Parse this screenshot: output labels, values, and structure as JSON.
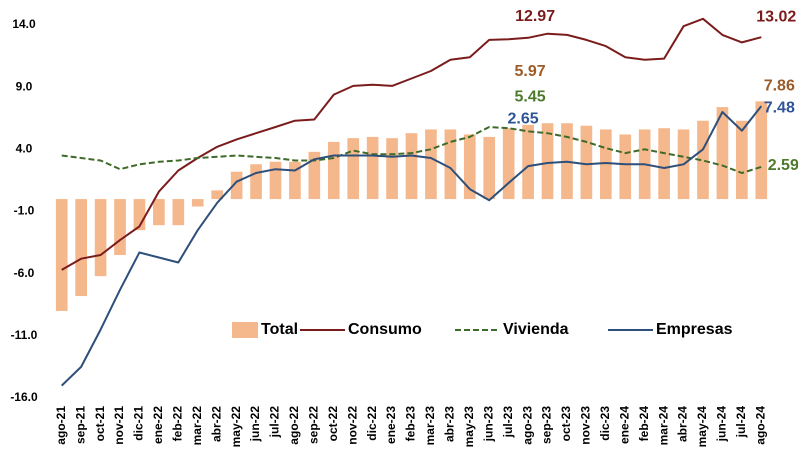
{
  "chart_data": {
    "type": "bar",
    "categories": [
      "ago-21",
      "sep-21",
      "oct-21",
      "nov-21",
      "dic-21",
      "ene-22",
      "feb-22",
      "mar-22",
      "abr-22",
      "may-22",
      "jun-22",
      "jul-22",
      "ago-22",
      "sep-22",
      "oct-22",
      "nov-22",
      "dic-22",
      "ene-23",
      "feb-23",
      "mar-23",
      "abr-23",
      "may-23",
      "jun-23",
      "jul-23",
      "ago-23",
      "sep-23",
      "oct-23",
      "nov-23",
      "dic-23",
      "ene-24",
      "feb-24",
      "mar-24",
      "abr-24",
      "may-24",
      "jun-24",
      "jul-24",
      "ago-24"
    ],
    "series": [
      {
        "name": "Total",
        "type": "bar",
        "color": "#f5b88c",
        "values": [
          -9.0,
          -7.8,
          -6.2,
          -4.5,
          -2.5,
          -2.1,
          -2.1,
          -0.6,
          0.7,
          2.2,
          2.8,
          3.0,
          3.0,
          3.8,
          4.6,
          4.9,
          5.0,
          4.9,
          5.3,
          5.6,
          5.6,
          5.2,
          5.0,
          5.7,
          5.97,
          6.1,
          6.1,
          5.9,
          5.6,
          5.2,
          5.6,
          5.7,
          5.6,
          6.3,
          7.4,
          6.3,
          7.86
        ]
      },
      {
        "name": "Consumo",
        "type": "line",
        "color": "#7b1c1c",
        "line_style": "solid",
        "values": [
          -5.7,
          -4.8,
          -4.5,
          -3.3,
          -2.2,
          0.6,
          2.3,
          3.3,
          4.2,
          4.8,
          5.3,
          5.8,
          6.3,
          6.4,
          8.4,
          9.1,
          9.2,
          9.1,
          9.7,
          10.3,
          11.2,
          11.4,
          12.8,
          12.85,
          12.97,
          13.3,
          13.2,
          12.8,
          12.3,
          11.4,
          11.2,
          11.3,
          13.9,
          14.5,
          13.2,
          12.6,
          13.02
        ]
      },
      {
        "name": "Vivienda",
        "type": "line",
        "color": "#3f6b2a",
        "line_style": "dashed",
        "values": [
          3.5,
          3.3,
          3.1,
          2.4,
          2.8,
          3.0,
          3.1,
          3.3,
          3.4,
          3.5,
          3.4,
          3.3,
          3.1,
          3.1,
          3.3,
          3.9,
          3.6,
          3.6,
          3.7,
          4.0,
          4.6,
          5.0,
          5.8,
          5.7,
          5.45,
          5.3,
          5.0,
          4.6,
          4.1,
          3.7,
          4.0,
          3.7,
          3.4,
          3.1,
          2.7,
          2.1,
          2.59
        ]
      },
      {
        "name": "Empresas",
        "type": "line",
        "color": "#2e4f7a",
        "line_style": "solid",
        "values": [
          -15.0,
          -13.5,
          -10.5,
          -7.3,
          -4.3,
          -4.7,
          -5.1,
          -2.5,
          -0.3,
          1.4,
          2.1,
          2.4,
          2.3,
          3.2,
          3.5,
          3.5,
          3.5,
          3.4,
          3.5,
          3.3,
          2.5,
          0.8,
          -0.1,
          1.3,
          2.65,
          2.9,
          3.0,
          2.8,
          2.9,
          2.8,
          2.8,
          2.5,
          2.8,
          4.0,
          7.0,
          5.5,
          7.48
        ]
      }
    ],
    "ylim": [
      -16,
      14
    ],
    "yticks": [
      {
        "value": -16,
        "label": "-16.0"
      },
      {
        "value": -11,
        "label": "-11.0"
      },
      {
        "value": -6,
        "label": "-6.0"
      },
      {
        "value": -1,
        "label": "-1.0"
      },
      {
        "value": 4,
        "label": "4.0"
      },
      {
        "value": 9,
        "label": "9.0"
      },
      {
        "value": 14,
        "label": "14.0"
      }
    ],
    "grid": false,
    "legend": "center"
  }
}
